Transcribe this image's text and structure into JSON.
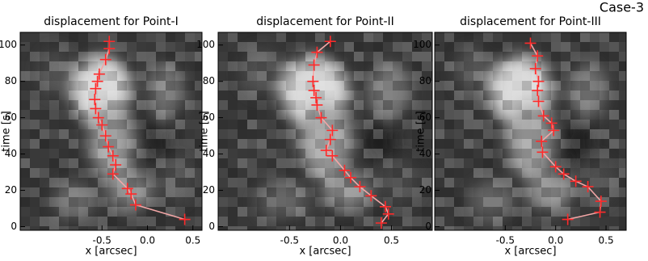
{
  "annotation": "Case-3",
  "chart_data": [
    {
      "type": "line",
      "title": "displacement for Point-I",
      "xlabel": "x [arcsec]",
      "ylabel": "time [s]",
      "x": [
        -0.42,
        -0.42,
        -0.46,
        -0.53,
        -0.55,
        -0.57,
        -0.58,
        -0.57,
        -0.54,
        -0.5,
        -0.46,
        -0.43,
        -0.38,
        -0.35,
        -0.38,
        -0.22,
        -0.18,
        -0.13,
        0.41
      ],
      "values": [
        102,
        98,
        92,
        84,
        80,
        76,
        70,
        65,
        60,
        56,
        50,
        44,
        39,
        34,
        29,
        21,
        18,
        12,
        4
      ],
      "color": "#ff2a2a",
      "line_color": "#f2a6a6",
      "xlim": [
        -1.4,
        0.6
      ],
      "ylim": [
        -2,
        107
      ],
      "xticks": [
        -0.5,
        {
          "value": 0,
          "label": "0.0"
        },
        0.5
      ],
      "yticks": [
        0,
        20,
        40,
        60,
        80,
        100
      ]
    },
    {
      "type": "line",
      "title": "displacement for Point-II",
      "xlabel": "x [arcsec]",
      "ylabel": "time [s]",
      "x": [
        -0.1,
        -0.23,
        -0.26,
        -0.27,
        -0.26,
        -0.24,
        -0.23,
        -0.19,
        -0.08,
        -0.1,
        -0.14,
        -0.08,
        0.04,
        0.1,
        0.19,
        0.3,
        0.44,
        0.47,
        0.4
      ],
      "values": [
        102,
        96,
        89,
        80,
        75,
        71,
        67,
        60,
        53,
        48,
        42,
        39,
        31,
        27,
        22,
        17,
        11,
        7,
        2
      ],
      "color": "#ff2a2a",
      "line_color": "#f2a6a6",
      "xlim": [
        -1.2,
        0.9
      ],
      "ylim": [
        -2,
        107
      ],
      "xticks": [
        -0.5,
        {
          "value": 0,
          "label": "0.0"
        },
        0.5
      ],
      "yticks": [
        0,
        20,
        40,
        60,
        80,
        100
      ]
    },
    {
      "type": "line",
      "title": "displacement for Point-III",
      "xlabel": "x [arcsec]",
      "ylabel": "time [s]",
      "x": [
        -0.25,
        -0.18,
        -0.2,
        -0.17,
        -0.18,
        -0.17,
        -0.12,
        -0.04,
        -0.02,
        -0.14,
        -0.13,
        0,
        0.08,
        0.2,
        0.32,
        0.45,
        0.44,
        0.12
      ],
      "values": [
        101,
        94,
        87,
        80,
        75,
        69,
        61,
        57,
        53,
        47,
        41,
        33,
        29,
        25,
        22,
        14,
        8,
        4
      ],
      "color": "#ff2a2a",
      "line_color": "#f2a6a6",
      "xlim": [
        -1.2,
        0.7
      ],
      "ylim": [
        -2,
        107
      ],
      "xticks": [
        -0.5,
        {
          "value": 0,
          "label": "0.0"
        },
        0.5
      ],
      "yticks": [
        0,
        20,
        40,
        60,
        80,
        100
      ]
    }
  ]
}
